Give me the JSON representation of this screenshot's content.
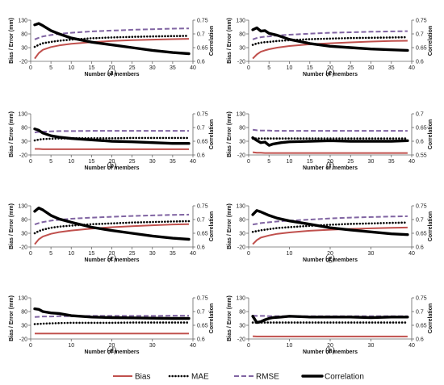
{
  "legend": {
    "placement": "bottom",
    "items": [
      {
        "label": "Bias",
        "color": "#c0504d",
        "style": "solid"
      },
      {
        "label": "MAE",
        "color": "#000000",
        "style": "dotted"
      },
      {
        "label": "RMSE",
        "color": "#8064a2",
        "style": "dashed"
      },
      {
        "label": "Correlation",
        "color": "#000000",
        "style": "solid-thick"
      }
    ]
  },
  "chart_data": [
    {
      "type": "line",
      "panel_label": "(a)",
      "xlabel": "Number of members",
      "ylabel": "Bias / Error (mm)",
      "y2label": "Correlation",
      "xlim": [
        0,
        40
      ],
      "xticks": [
        0,
        5,
        10,
        15,
        20,
        25,
        30,
        35,
        40
      ],
      "ylim": [
        -20,
        130
      ],
      "yticks": [
        -20,
        30,
        80,
        130
      ],
      "y2lim": [
        0.6,
        0.75
      ],
      "y2ticks": [
        0.6,
        0.65,
        0.7,
        0.75
      ],
      "y2ticklabels": [
        "0.6",
        "0.65",
        "0.7",
        "0.75"
      ],
      "x": [
        1,
        2,
        3,
        5,
        7,
        10,
        15,
        20,
        25,
        30,
        35,
        39
      ],
      "series": [
        {
          "name": "Bias",
          "axis": "left",
          "values": [
            -10,
            10,
            22,
            32,
            38,
            44,
            50,
            54,
            57,
            59,
            61,
            62
          ]
        },
        {
          "name": "MAE",
          "axis": "left",
          "values": [
            33,
            40,
            46,
            51,
            55,
            59,
            64,
            67,
            69,
            71,
            72,
            73
          ]
        },
        {
          "name": "RMSE",
          "axis": "left",
          "values": [
            60,
            66,
            71,
            76,
            80,
            84,
            89,
            92,
            95,
            97,
            99,
            100
          ]
        },
        {
          "name": "Correlation",
          "axis": "right",
          "values": [
            0.733,
            0.738,
            0.73,
            0.712,
            0.7,
            0.685,
            0.67,
            0.66,
            0.65,
            0.64,
            0.632,
            0.628
          ]
        }
      ]
    },
    {
      "type": "line",
      "panel_label": "(b)",
      "xlabel": "Number of members",
      "ylabel": "Bias / Error (mm)",
      "y2label": "Correlation",
      "xlim": [
        0,
        40
      ],
      "xticks": [
        0,
        5,
        10,
        15,
        20,
        25,
        30,
        35,
        40
      ],
      "ylim": [
        -20,
        130
      ],
      "yticks": [
        -20,
        30,
        80,
        130
      ],
      "y2lim": [
        0.6,
        0.75
      ],
      "y2ticks": [
        0.6,
        0.65,
        0.7,
        0.75
      ],
      "y2ticklabels": [
        "0.6",
        "0.65",
        "0.7",
        "0.75"
      ],
      "x": [
        1,
        2,
        3,
        5,
        7,
        10,
        15,
        20,
        25,
        30,
        35,
        39
      ],
      "series": [
        {
          "name": "Bias",
          "axis": "left",
          "values": [
            2,
            2,
            1,
            1,
            1,
            1,
            1,
            1,
            1,
            1,
            1,
            1
          ]
        },
        {
          "name": "MAE",
          "axis": "left",
          "values": [
            33,
            36,
            38,
            39,
            40,
            41,
            41,
            41,
            42,
            42,
            42,
            42
          ]
        },
        {
          "name": "RMSE",
          "axis": "left",
          "values": [
            62,
            64,
            65,
            66,
            67,
            67,
            68,
            68,
            68,
            68,
            68,
            68
          ]
        },
        {
          "name": "Correlation",
          "axis": "right",
          "values": [
            0.695,
            0.69,
            0.68,
            0.67,
            0.665,
            0.66,
            0.655,
            0.65,
            0.648,
            0.645,
            0.642,
            0.642
          ]
        }
      ]
    },
    {
      "type": "line",
      "panel_label": "(c)",
      "xlabel": "Number of members",
      "ylabel": "Bias / Error (mm)",
      "y2label": "Correlation",
      "xlim": [
        0,
        40
      ],
      "xticks": [
        0,
        5,
        10,
        15,
        20,
        25,
        30,
        35,
        40
      ],
      "ylim": [
        -20,
        130
      ],
      "yticks": [
        -20,
        30,
        80,
        130
      ],
      "y2lim": [
        0.6,
        0.75
      ],
      "y2ticks": [
        0.6,
        0.65,
        0.7,
        0.75
      ],
      "y2ticklabels": [
        "0.6",
        "0.65",
        "0.7",
        "0.75"
      ],
      "x": [
        1,
        2,
        3,
        5,
        7,
        10,
        15,
        20,
        25,
        30,
        35,
        39
      ],
      "series": [
        {
          "name": "Bias",
          "axis": "left",
          "values": [
            -10,
            8,
            18,
            28,
            34,
            40,
            47,
            52,
            56,
            59,
            62,
            63
          ]
        },
        {
          "name": "MAE",
          "axis": "left",
          "values": [
            30,
            38,
            43,
            50,
            54,
            58,
            63,
            66,
            69,
            71,
            73,
            74
          ]
        },
        {
          "name": "RMSE",
          "axis": "left",
          "values": [
            62,
            67,
            71,
            76,
            79,
            83,
            87,
            90,
            93,
            95,
            97,
            98
          ]
        },
        {
          "name": "Correlation",
          "axis": "right",
          "values": [
            0.73,
            0.742,
            0.735,
            0.715,
            0.702,
            0.69,
            0.672,
            0.66,
            0.65,
            0.64,
            0.632,
            0.628
          ]
        }
      ]
    },
    {
      "type": "line",
      "panel_label": "(d)",
      "xlabel": "Number of members",
      "ylabel": "Bias / Error (mm)",
      "y2label": "Correlation",
      "xlim": [
        0,
        40
      ],
      "xticks": [
        0,
        10,
        20,
        30,
        40
      ],
      "ylim": [
        -20,
        130
      ],
      "yticks": [
        -20,
        30,
        80,
        130
      ],
      "y2lim": [
        0.6,
        0.75
      ],
      "y2ticks": [
        0.6,
        0.65,
        0.7,
        0.75
      ],
      "y2ticklabels": [
        "0.6",
        "0.65",
        "0.7",
        "0.75"
      ],
      "x": [
        1,
        2,
        3,
        5,
        7,
        10,
        15,
        20,
        25,
        30,
        35,
        39
      ],
      "series": [
        {
          "name": "Bias",
          "axis": "left",
          "values": [
            0,
            0,
            0,
            0,
            0,
            0,
            0,
            0,
            0,
            0,
            0,
            0
          ]
        },
        {
          "name": "MAE",
          "axis": "left",
          "values": [
            34,
            35,
            36,
            37,
            38,
            39,
            39,
            39,
            40,
            40,
            40,
            40
          ]
        },
        {
          "name": "RMSE",
          "axis": "left",
          "values": [
            60,
            61,
            62,
            62,
            63,
            63,
            64,
            64,
            64,
            64,
            65,
            65
          ]
        },
        {
          "name": "Correlation",
          "axis": "right",
          "values": [
            0.71,
            0.708,
            0.7,
            0.695,
            0.693,
            0.685,
            0.68,
            0.678,
            0.677,
            0.676,
            0.675,
            0.675
          ]
        }
      ]
    },
    {
      "type": "line",
      "panel_label": "(e)",
      "xlabel": "Number of members",
      "ylabel": "Bias / Error (mm)",
      "y2label": "Correlation",
      "xlim": [
        0,
        40
      ],
      "xticks": [
        0,
        5,
        10,
        15,
        20,
        25,
        30,
        35,
        40
      ],
      "ylim": [
        -20,
        130
      ],
      "yticks": [
        -20,
        30,
        80,
        130
      ],
      "y2lim": [
        0.6,
        0.75
      ],
      "y2ticks": [
        0.6,
        0.65,
        0.7,
        0.75
      ],
      "y2ticklabels": [
        "0.6",
        "0.65",
        "0.7",
        "0.75"
      ],
      "x": [
        1,
        2,
        3,
        4,
        5,
        7,
        10,
        15,
        20,
        25,
        30,
        35,
        39
      ],
      "series": [
        {
          "name": "Bias",
          "axis": "left",
          "values": [
            -10,
            5,
            15,
            20,
            24,
            30,
            36,
            42,
            46,
            49,
            52,
            54,
            55
          ]
        },
        {
          "name": "MAE",
          "axis": "left",
          "values": [
            40,
            45,
            48,
            50,
            51,
            54,
            57,
            61,
            63,
            65,
            66,
            67,
            68
          ]
        },
        {
          "name": "RMSE",
          "axis": "left",
          "values": [
            60,
            65,
            68,
            70,
            71,
            74,
            77,
            81,
            84,
            86,
            88,
            89,
            90
          ]
        },
        {
          "name": "Correlation",
          "axis": "right",
          "values": [
            0.715,
            0.722,
            0.71,
            0.712,
            0.702,
            0.695,
            0.68,
            0.665,
            0.655,
            0.65,
            0.645,
            0.642,
            0.64
          ]
        }
      ]
    },
    {
      "type": "line",
      "panel_label": "(f)",
      "xlabel": "Number of members",
      "ylabel": "Bias / Error (mm)",
      "y2label": "Correlation",
      "xlim": [
        0,
        40
      ],
      "xticks": [
        0,
        5,
        10,
        15,
        20,
        25,
        30,
        35,
        40
      ],
      "ylim": [
        -20,
        130
      ],
      "yticks": [
        -20,
        30,
        80,
        130
      ],
      "y2lim": [
        0.55,
        0.7
      ],
      "y2ticks": [
        0.55,
        0.6,
        0.65,
        0.7
      ],
      "y2ticklabels": [
        "0.55",
        "0.6",
        "0.65",
        "0.7"
      ],
      "x": [
        1,
        2,
        3,
        4,
        5,
        6,
        8,
        10,
        15,
        20,
        25,
        30,
        35,
        39
      ],
      "series": [
        {
          "name": "Bias",
          "axis": "left",
          "values": [
            -10,
            -12,
            -12,
            -13,
            -13,
            -13,
            -13,
            -13,
            -13,
            -13,
            -13,
            -13,
            -13,
            -13
          ]
        },
        {
          "name": "MAE",
          "axis": "left",
          "values": [
            40,
            40,
            40,
            40,
            40,
            40,
            40,
            40,
            40,
            40,
            40,
            40,
            40,
            40
          ]
        },
        {
          "name": "RMSE",
          "axis": "left",
          "values": [
            72,
            70,
            69,
            69,
            69,
            68,
            68,
            68,
            68,
            68,
            68,
            68,
            68,
            68
          ]
        },
        {
          "name": "Correlation",
          "axis": "right",
          "values": [
            0.613,
            0.603,
            0.595,
            0.597,
            0.585,
            0.59,
            0.595,
            0.598,
            0.6,
            0.602,
            0.6,
            0.6,
            0.6,
            0.602
          ]
        }
      ]
    },
    {
      "type": "line",
      "panel_label": "(g)",
      "xlabel": "Number of members",
      "ylabel": "Bias / Error (mm)",
      "y2label": "Correlation",
      "xlim": [
        0,
        40
      ],
      "xticks": [
        0,
        10,
        20,
        30,
        40
      ],
      "ylim": [
        -20,
        130
      ],
      "yticks": [
        -20,
        30,
        80,
        130
      ],
      "y2lim": [
        0.6,
        0.75
      ],
      "y2ticks": [
        0.6,
        0.65,
        0.7,
        0.75
      ],
      "y2ticklabels": [
        "0.6",
        "0.65",
        "0.7",
        "0.75"
      ],
      "x": [
        1,
        2,
        3,
        5,
        7,
        10,
        15,
        20,
        25,
        30,
        35,
        39
      ],
      "series": [
        {
          "name": "Bias",
          "axis": "left",
          "values": [
            -10,
            5,
            14,
            22,
            28,
            33,
            39,
            43,
            46,
            48,
            50,
            51
          ]
        },
        {
          "name": "MAE",
          "axis": "left",
          "values": [
            35,
            38,
            41,
            45,
            49,
            52,
            57,
            61,
            64,
            66,
            68,
            69
          ]
        },
        {
          "name": "RMSE",
          "axis": "left",
          "values": [
            62,
            64,
            67,
            70,
            73,
            76,
            80,
            84,
            87,
            89,
            91,
            92
          ]
        },
        {
          "name": "Correlation",
          "axis": "right",
          "values": [
            0.718,
            0.733,
            0.728,
            0.715,
            0.705,
            0.695,
            0.683,
            0.67,
            0.662,
            0.655,
            0.648,
            0.645
          ]
        }
      ]
    },
    {
      "type": "line",
      "panel_label": "(h)",
      "xlabel": "Number of members",
      "ylabel": "Bias / Error (mm)",
      "y2label": "Correlation",
      "xlim": [
        0,
        40
      ],
      "xticks": [
        0,
        10,
        20,
        30,
        40
      ],
      "ylim": [
        -20,
        130
      ],
      "yticks": [
        -20,
        30,
        80,
        130
      ],
      "y2lim": [
        0.6,
        0.75
      ],
      "y2ticks": [
        0.6,
        0.65,
        0.7,
        0.75
      ],
      "y2ticklabels": [
        "0.6",
        "0.65",
        "0.7",
        "0.75"
      ],
      "x": [
        1,
        2,
        3,
        4,
        5,
        6,
        8,
        10,
        15,
        20,
        25,
        30,
        35,
        39
      ],
      "series": [
        {
          "name": "Bias",
          "axis": "left",
          "values": [
            -10,
            -11,
            -11,
            -11,
            -11,
            -11,
            -11,
            -11,
            -11,
            -11,
            -11,
            -11,
            -11,
            -11
          ]
        },
        {
          "name": "MAE",
          "axis": "left",
          "values": [
            40,
            40,
            40,
            40,
            40,
            40,
            40,
            40,
            40,
            40,
            40,
            40,
            40,
            40
          ]
        },
        {
          "name": "RMSE",
          "axis": "left",
          "values": [
            65,
            64,
            64,
            64,
            63,
            63,
            63,
            63,
            63,
            63,
            63,
            63,
            63,
            63
          ]
        },
        {
          "name": "Correlation",
          "axis": "right",
          "values": [
            0.683,
            0.66,
            0.663,
            0.67,
            0.675,
            0.678,
            0.68,
            0.683,
            0.68,
            0.68,
            0.68,
            0.678,
            0.68,
            0.68
          ]
        }
      ]
    }
  ]
}
